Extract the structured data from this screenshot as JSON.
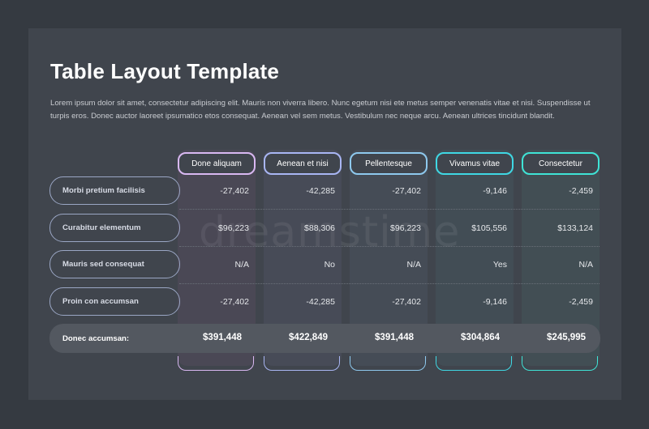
{
  "title": "Table Layout Template",
  "description": "Lorem ipsum dolor sit amet, consectetur adipiscing elit. Mauris non viverra libero. Nunc egetum nisi ete metus semper venenatis vitae et nisi. Suspendisse ut turpis eros. Donec auctor laoreet ipsumatico etos consequat. Aenean vel sem metus. Vestibulum nec neque arcu. Aenean ultrices tincidunt blandit.",
  "watermark": "dreamstime",
  "columns": [
    {
      "label": "Done aliquam",
      "color": "#d9b8f2",
      "fill": "#4a4855"
    },
    {
      "label": "Aenean et nisi",
      "color": "#a9b6f4",
      "fill": "#474b57"
    },
    {
      "label": "Pellentesque",
      "color": "#8ec9ee",
      "fill": "#454c56"
    },
    {
      "label": "Vivamus vitae",
      "color": "#3fd8e4",
      "fill": "#424d55"
    },
    {
      "label": "Consectetur",
      "color": "#3fe4d6",
      "fill": "#424e54"
    }
  ],
  "rows": [
    {
      "label": "Morbi pretium facilisis",
      "values": [
        "-27,402",
        "-42,285",
        "-27,402",
        "-9,146",
        "-2,459"
      ]
    },
    {
      "label": "Curabitur elementum",
      "values": [
        "$96,223",
        "$88,306",
        "$96,223",
        "$105,556",
        "$133,124"
      ]
    },
    {
      "label": "Mauris sed consequat",
      "values": [
        "N/A",
        "No",
        "N/A",
        "Yes",
        "N/A"
      ]
    },
    {
      "label": "Proin con accumsan",
      "values": [
        "-27,402",
        "-42,285",
        "-27,402",
        "-9,146",
        "-2,459"
      ]
    }
  ],
  "total": {
    "label": "Donec accumsan:",
    "values": [
      "$391,448",
      "$422,849",
      "$391,448",
      "$304,864",
      "$245,995"
    ]
  }
}
